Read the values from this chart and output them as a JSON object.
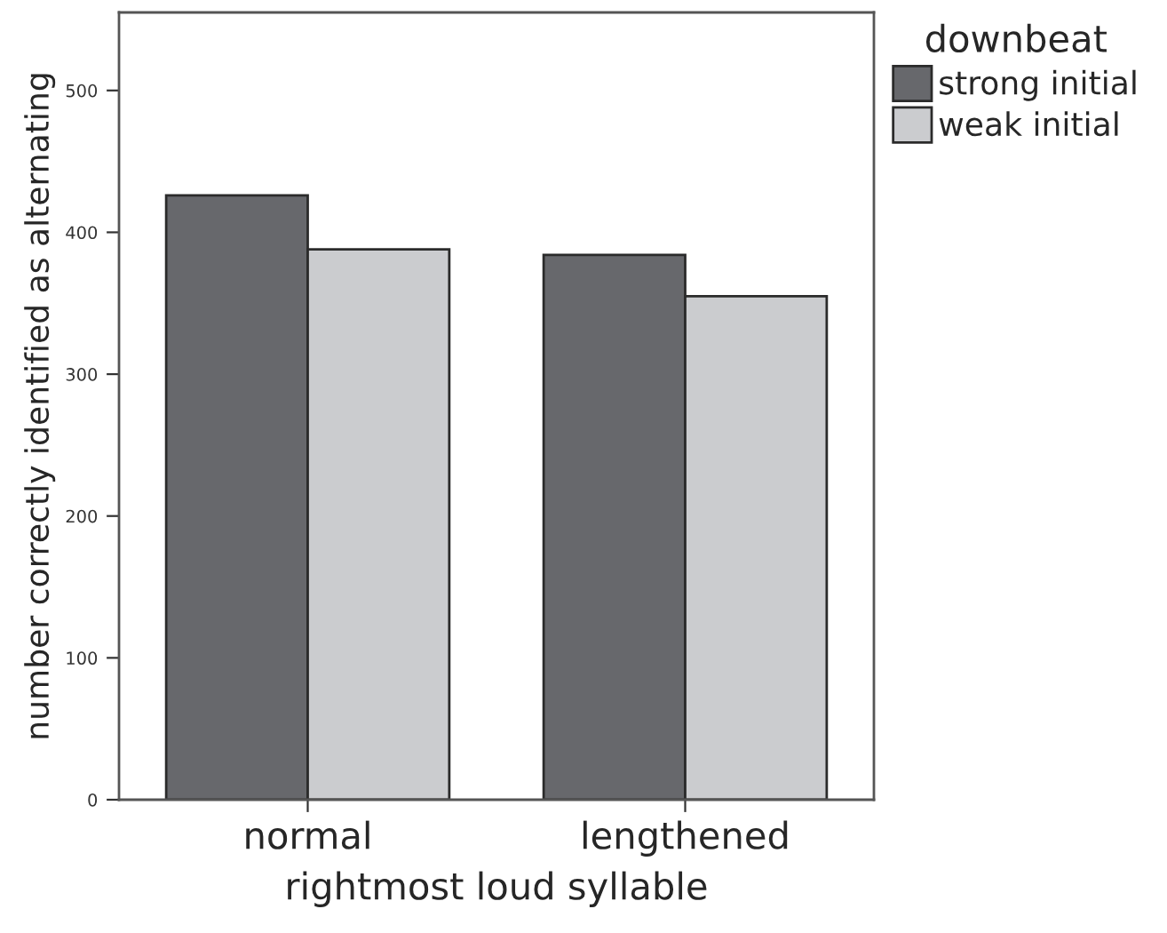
{
  "chart_data": {
    "type": "bar",
    "xlabel": "rightmost loud syllable",
    "ylabel": "number correctly identified as alternating",
    "legend_title": "downbeat",
    "categories": [
      "normal",
      "lengthened"
    ],
    "series": [
      {
        "name": "strong initial",
        "color": "#67686c",
        "values": [
          426,
          384
        ]
      },
      {
        "name": "weak initial",
        "color": "#cbcccf",
        "values": [
          388,
          355
        ]
      }
    ],
    "ylim": [
      0,
      555
    ],
    "yticks": [
      0,
      100,
      200,
      300,
      400,
      500
    ],
    "grid": false,
    "legend": "top right"
  }
}
